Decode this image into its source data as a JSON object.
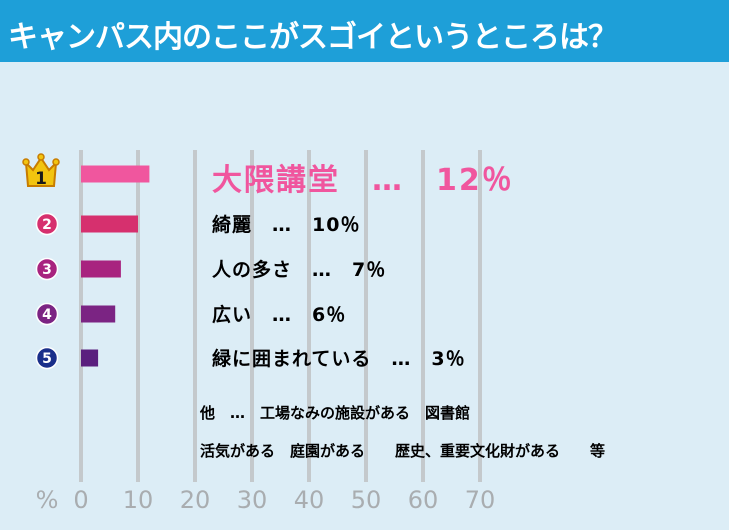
{
  "header": {
    "title": "キャンパス内のここがスゴイというところは？"
  },
  "chart_data": {
    "type": "bar",
    "orientation": "horizontal",
    "unit_label": "%",
    "xlim": [
      0,
      70
    ],
    "ticks": [
      0,
      10,
      20,
      30,
      40,
      50,
      60,
      70
    ],
    "grid": true,
    "ranks": [
      "1",
      "2",
      "3",
      "4",
      "5"
    ],
    "categories": [
      "大隈講堂",
      "綺麗",
      "人の多さ",
      "広い",
      "緑に囲まれている"
    ],
    "values": [
      12,
      10,
      7,
      6,
      3
    ],
    "value_labels": [
      "12％",
      "10％",
      "7％",
      "6％",
      "3％"
    ],
    "separator": "…",
    "bar_colors": [
      "#f0569e",
      "#d6306e",
      "#a8237f",
      "#7b2483",
      "#5a1f7e"
    ],
    "rank_colors": [
      "#f2c40f",
      "#d6306e",
      "#a8237f",
      "#7b2483",
      "#1a2f8a"
    ]
  },
  "notes": [
    "他　…　工場なみの施設がある　図書館",
    "活気がある　庭園がある　　歴史、重要文化財がある　　等"
  ]
}
